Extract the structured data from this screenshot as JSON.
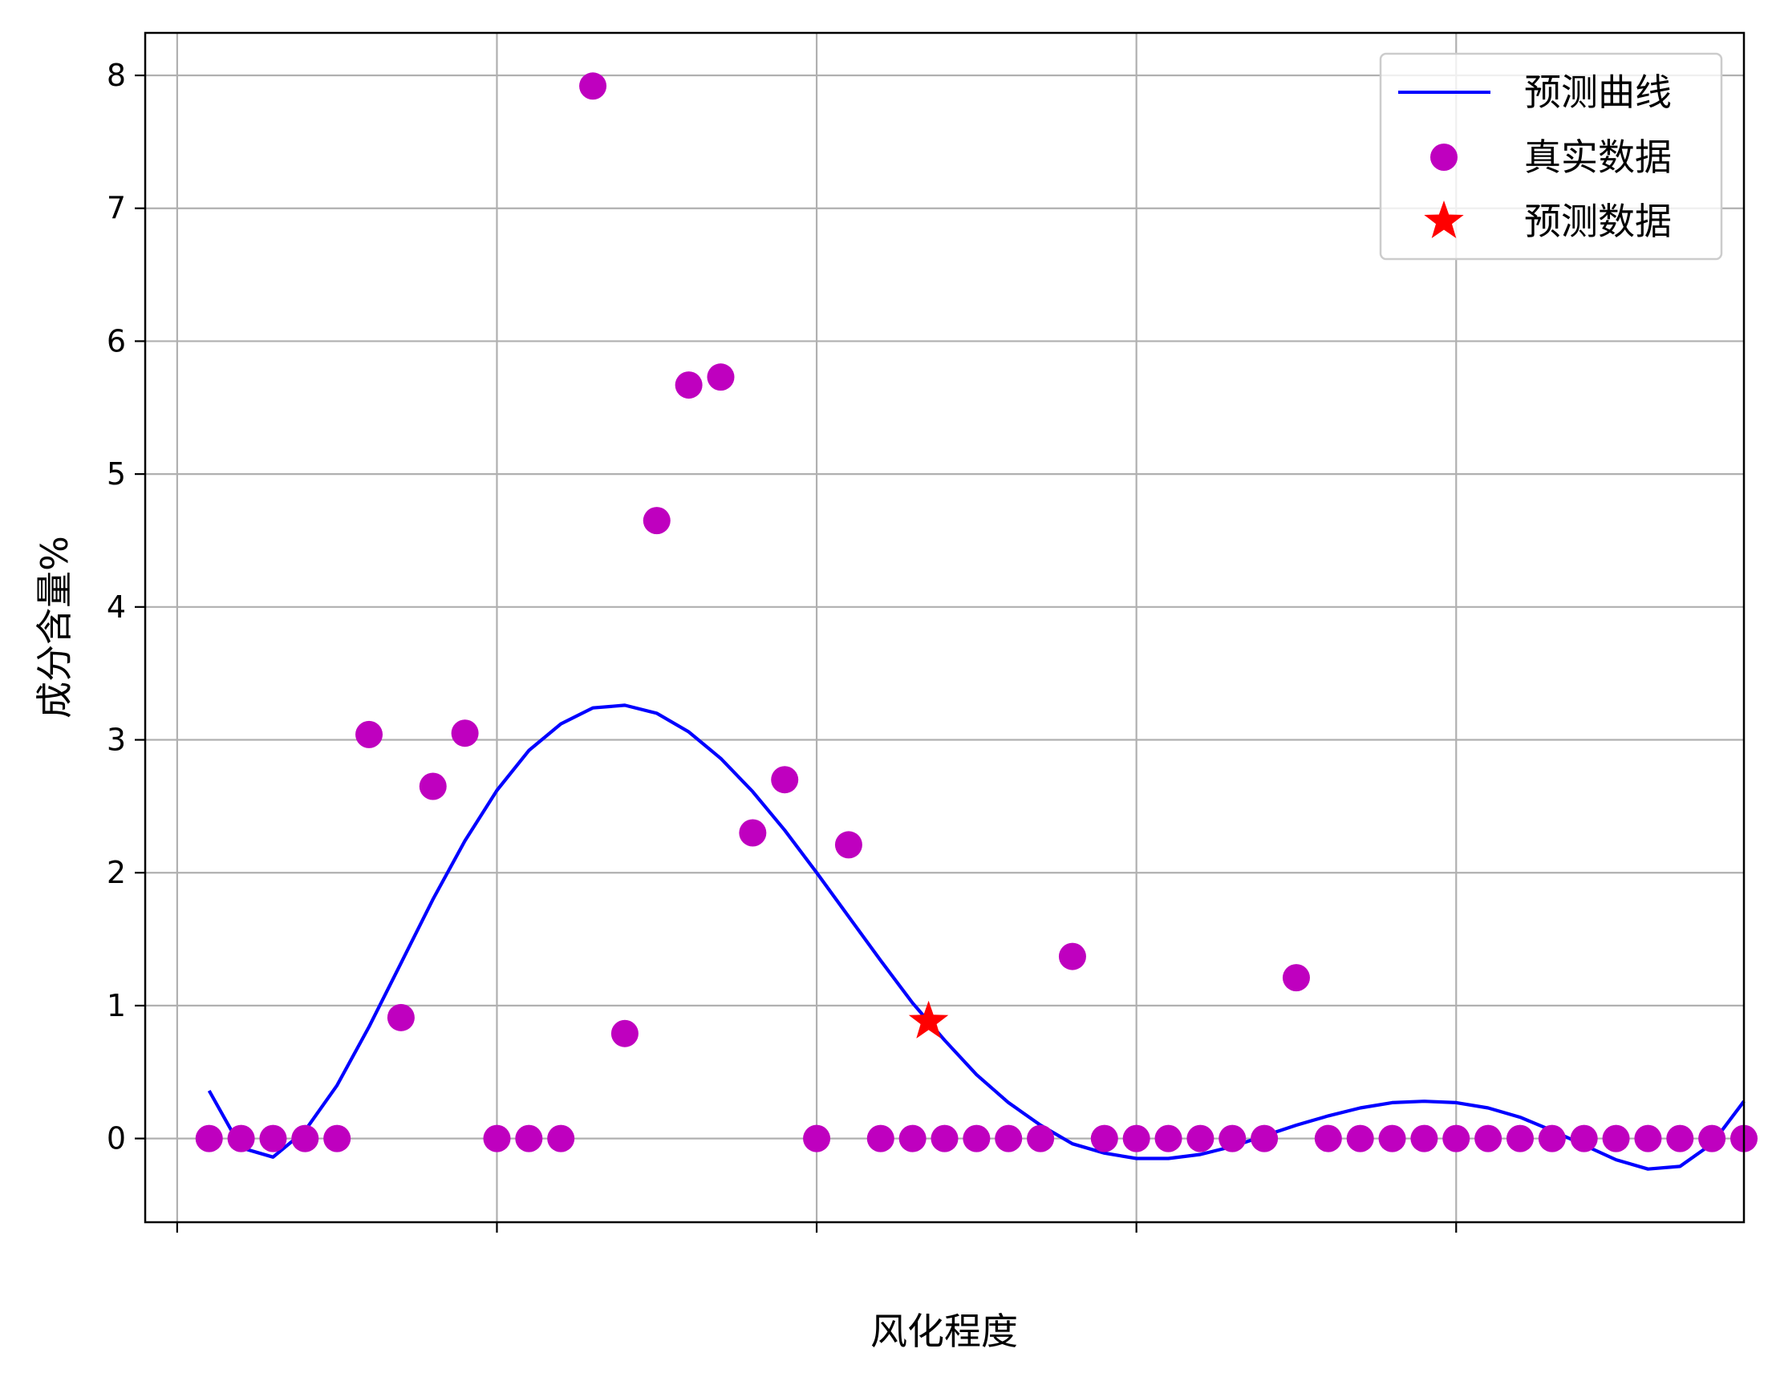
{
  "chart_data": {
    "type": "line",
    "xlabel": "风化程度",
    "ylabel": "成分含量%",
    "xlim": [
      0,
      50
    ],
    "ylim": [
      -0.63,
      8.32
    ],
    "yticks": [
      0,
      1,
      2,
      3,
      4,
      5,
      6,
      7,
      8
    ],
    "yticklabels": [
      "0",
      "1",
      "2",
      "3",
      "4",
      "5",
      "6",
      "7",
      "8"
    ],
    "xticks": [
      1.0,
      11.0,
      21.0,
      31.0,
      41.0,
      51.0
    ],
    "grid": true,
    "legend_position": "top-right",
    "series": [
      {
        "name": "预测曲线",
        "kind": "line",
        "color": "#0000ff",
        "x": [
          2,
          3,
          4,
          5,
          6,
          7,
          8,
          9,
          10,
          11,
          12,
          13,
          14,
          15,
          16,
          17,
          18,
          19,
          20,
          21,
          22,
          23,
          24,
          25,
          26,
          27,
          28,
          29,
          30,
          31,
          32,
          33,
          34,
          35,
          36,
          37,
          38,
          39,
          40,
          41,
          42,
          43,
          44,
          45,
          46,
          47,
          48,
          49,
          50
        ],
        "y": [
          0.36,
          -0.07,
          -0.14,
          0.06,
          0.4,
          0.84,
          1.32,
          1.8,
          2.24,
          2.62,
          2.92,
          3.12,
          3.24,
          3.26,
          3.2,
          3.06,
          2.86,
          2.61,
          2.32,
          2.0,
          1.67,
          1.34,
          1.02,
          0.74,
          0.48,
          0.27,
          0.1,
          -0.04,
          -0.11,
          -0.15,
          -0.15,
          -0.12,
          -0.06,
          0.02,
          0.1,
          0.17,
          0.23,
          0.27,
          0.28,
          0.27,
          0.23,
          0.16,
          0.06,
          -0.05,
          -0.16,
          -0.23,
          -0.21,
          -0.04,
          0.28
        ]
      },
      {
        "name": "真实数据",
        "kind": "scatter",
        "marker": "circle",
        "color": "#bf00bf",
        "x": [
          2,
          3,
          4,
          5,
          6,
          7,
          8,
          9,
          10,
          11,
          12,
          13,
          14,
          15,
          16,
          17,
          18,
          19,
          20,
          21,
          22,
          23,
          24,
          25,
          26,
          27,
          28,
          29,
          30,
          31,
          32,
          33,
          34,
          35,
          36,
          37,
          38,
          39,
          40,
          41,
          42,
          43,
          44,
          45,
          46,
          47,
          48,
          49,
          50
        ],
        "y": [
          0,
          0,
          0,
          0,
          0,
          3.04,
          0.91,
          2.65,
          3.05,
          0,
          0,
          0,
          7.92,
          0.79,
          4.65,
          5.67,
          5.73,
          2.3,
          2.7,
          0,
          2.21,
          0,
          0,
          0,
          0,
          0,
          0,
          1.37,
          0,
          0,
          0,
          0,
          0,
          0,
          1.21,
          0,
          0,
          0,
          0,
          0,
          0,
          0,
          0,
          0,
          0,
          0,
          0,
          0,
          0
        ]
      },
      {
        "name": "预测数据",
        "kind": "scatter",
        "marker": "star",
        "color": "#ff0000",
        "x": [
          24.5
        ],
        "y": [
          0.88
        ]
      }
    ]
  }
}
